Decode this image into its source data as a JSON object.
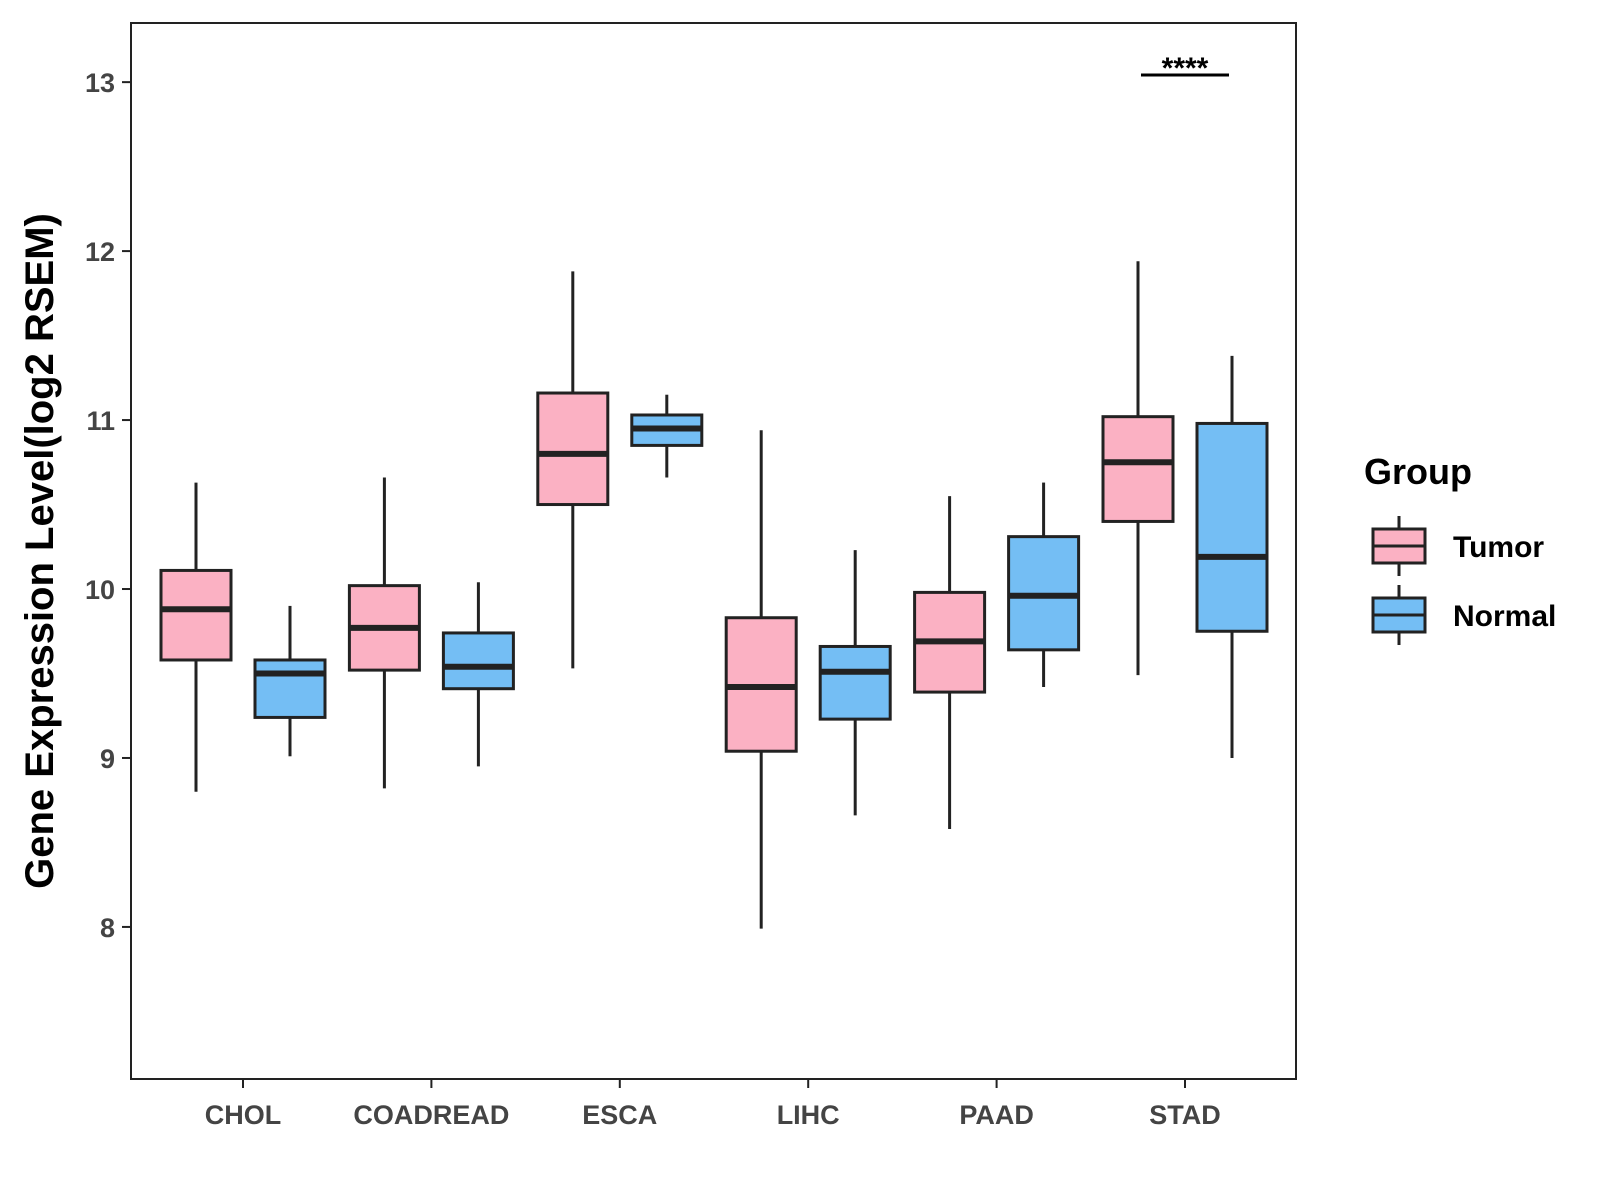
{
  "chart_data": {
    "type": "boxplot",
    "title": "",
    "xlabel": "",
    "ylabel": "Gene Expression Level(log2 RSEM)",
    "ylim": [
      7.1,
      13.35
    ],
    "yticks": [
      8,
      9,
      10,
      11,
      12,
      13
    ],
    "categories": [
      "CHOL",
      "COADREAD",
      "ESCA",
      "LIHC",
      "PAAD",
      "STAD"
    ],
    "legend": {
      "title": "Group",
      "position": "right",
      "entries": [
        "Tumor",
        "Normal"
      ]
    },
    "series": [
      {
        "name": "Tumor",
        "color": "#FBB1C3",
        "boxes": [
          {
            "min": 8.8,
            "q1": 9.58,
            "median": 9.88,
            "q3": 10.11,
            "max": 10.63
          },
          {
            "min": 8.82,
            "q1": 9.52,
            "median": 9.77,
            "q3": 10.02,
            "max": 10.66
          },
          {
            "min": 9.53,
            "q1": 10.5,
            "median": 10.8,
            "q3": 11.16,
            "max": 11.88
          },
          {
            "min": 7.99,
            "q1": 9.04,
            "median": 9.42,
            "q3": 9.83,
            "max": 10.94
          },
          {
            "min": 8.58,
            "q1": 9.39,
            "median": 9.69,
            "q3": 9.98,
            "max": 10.55
          },
          {
            "min": 9.49,
            "q1": 10.4,
            "median": 10.75,
            "q3": 11.02,
            "max": 11.94
          }
        ]
      },
      {
        "name": "Normal",
        "color": "#74BEF4",
        "boxes": [
          {
            "min": 9.01,
            "q1": 9.24,
            "median": 9.5,
            "q3": 9.58,
            "max": 9.9
          },
          {
            "min": 8.95,
            "q1": 9.41,
            "median": 9.54,
            "q3": 9.74,
            "max": 10.04
          },
          {
            "min": 10.66,
            "q1": 10.85,
            "median": 10.95,
            "q3": 11.03,
            "max": 11.15
          },
          {
            "min": 8.66,
            "q1": 9.23,
            "median": 9.51,
            "q3": 9.66,
            "max": 10.23
          },
          {
            "min": 9.42,
            "q1": 9.64,
            "median": 9.96,
            "q3": 10.31,
            "max": 10.63
          },
          {
            "min": 9.0,
            "q1": 9.75,
            "median": 10.19,
            "q3": 10.98,
            "max": 11.38
          }
        ]
      }
    ],
    "annotations": [
      {
        "category": "STAD",
        "text": "****"
      }
    ]
  }
}
